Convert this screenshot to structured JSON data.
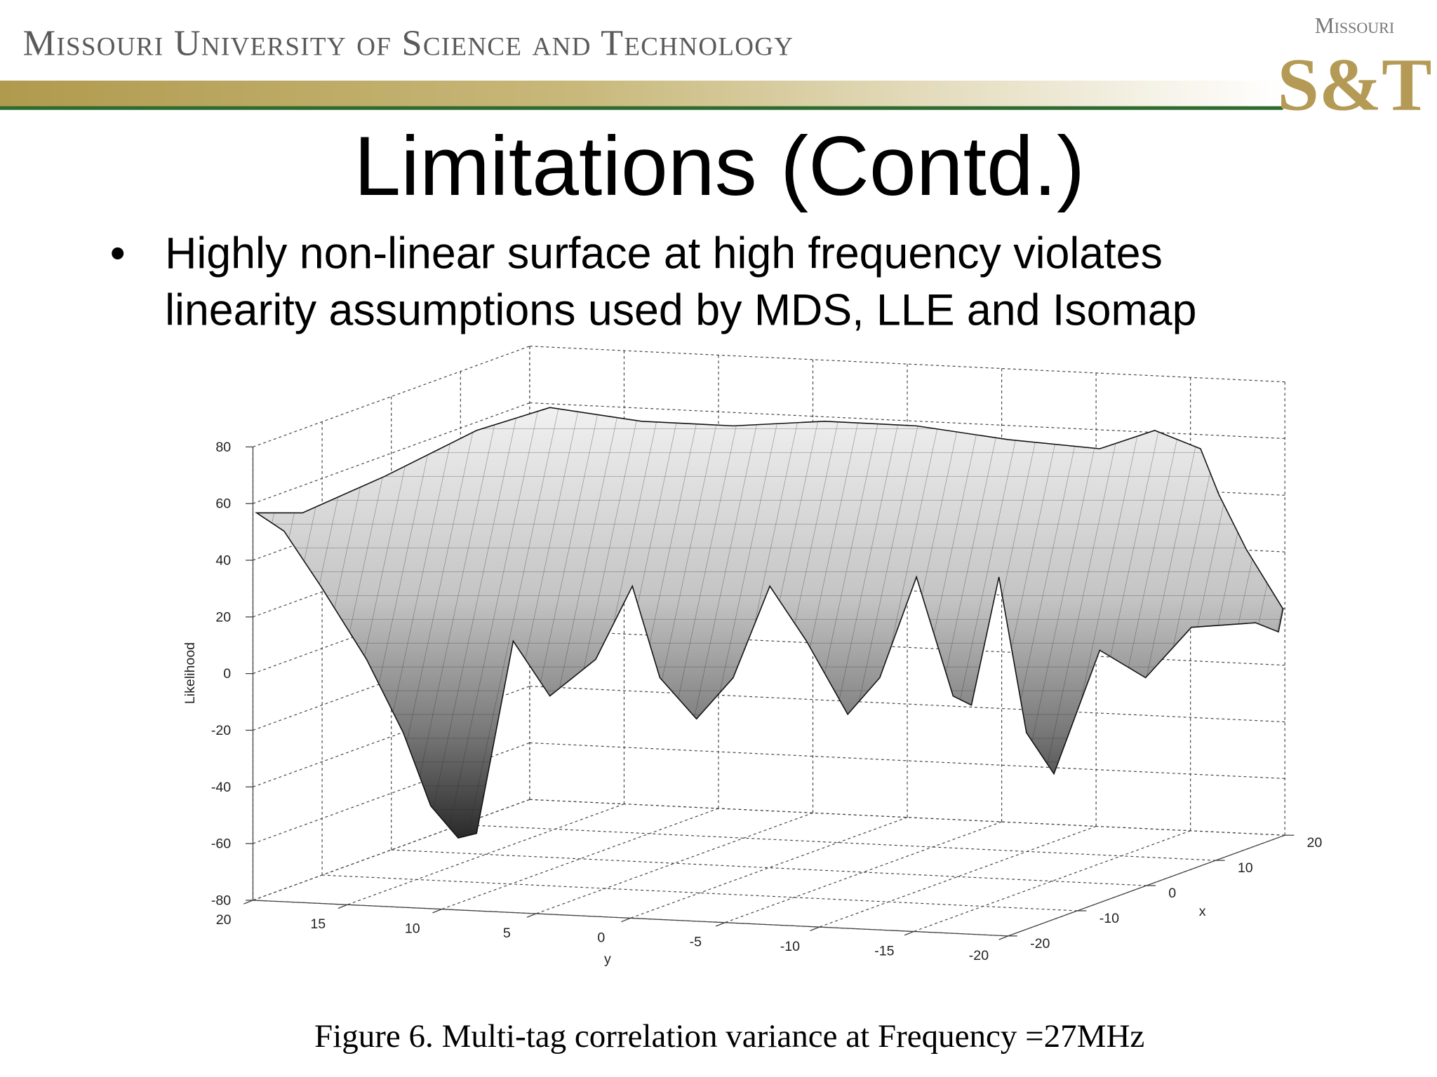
{
  "header": {
    "university": "Missouri University of Science and Technology",
    "logo_top": "Missouri",
    "logo_main": "S&T"
  },
  "title": "Limitations (Contd.)",
  "bullets": [
    "Highly non-linear surface at high frequency violates",
    "linearity assumptions used by MDS, LLE and Isomap"
  ],
  "figure": {
    "z_label": "Likelihood",
    "z_ticks": [
      80,
      60,
      40,
      20,
      0,
      -20,
      -40,
      -60,
      -80
    ],
    "y_label": "y",
    "y_ticks": [
      20,
      15,
      10,
      5,
      0,
      -5,
      -10,
      -15,
      -20
    ],
    "x_label": "x",
    "x_ticks": [
      20,
      10,
      0,
      -10,
      -20
    ],
    "caption": "Figure 6. Multi-tag correlation variance at Frequency =27MHz"
  }
}
